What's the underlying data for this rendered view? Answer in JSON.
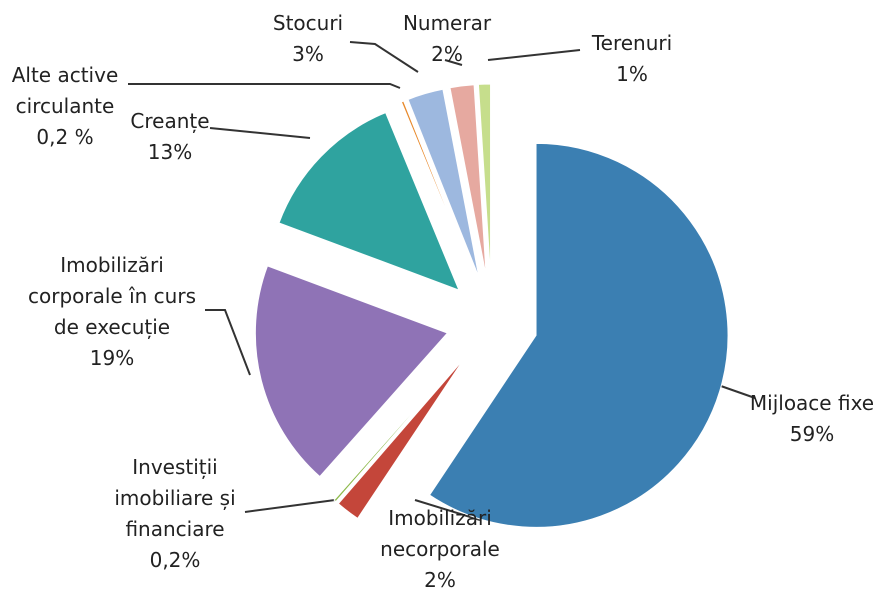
{
  "chart_data": {
    "type": "pie",
    "categories": [
      "Mijloace fixe",
      "Imobilizări necorporale",
      "Investiții imobiliare și financiare",
      "Imobilizări corporale în curs de execuție",
      "Creanțe",
      "Alte active circulante",
      "Stocuri",
      "Numerar",
      "Terenuri"
    ],
    "values": [
      59,
      2,
      0.2,
      19,
      13,
      0.2,
      3,
      2,
      1
    ],
    "value_labels": [
      "59%",
      "2%",
      "0,2%",
      "19%",
      "13%",
      "0,2 %",
      "3%",
      "2%",
      "1%"
    ],
    "colors": [
      "#3b7fb2",
      "#c4463a",
      "#8dba4c",
      "#8f73b6",
      "#2fa39f",
      "#e8892b",
      "#9db8df",
      "#e6a9a0",
      "#c6de8c"
    ]
  }
}
